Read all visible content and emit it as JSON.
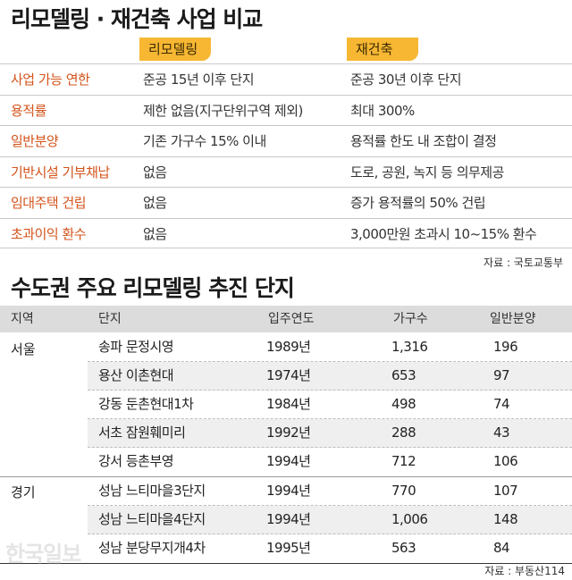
{
  "comparison": {
    "title": "리모델링 · 재건축 사업 비교",
    "col_remodel": "리모델링",
    "col_rebuild": "재건축",
    "rows": [
      {
        "label": "사업 가능 연한",
        "remodel": "준공 15년 이후 단지",
        "rebuild": "준공 30년 이후 단지"
      },
      {
        "label": "용적률",
        "remodel": "제한 없음(지구단위구역 제외)",
        "rebuild": "최대 300%"
      },
      {
        "label": "일반분양",
        "remodel": "기존 가구수 15% 이내",
        "rebuild": "용적률 한도 내 조합이 결정"
      },
      {
        "label": "기반시설 기부채납",
        "remodel": "없음",
        "rebuild": "도로, 공원, 녹지 등 의무제공"
      },
      {
        "label": "임대주택 건립",
        "remodel": "없음",
        "rebuild": "증가 용적률의 50% 건립"
      },
      {
        "label": "초과이익 환수",
        "remodel": "없음",
        "rebuild": "3,000만원 초과시 10~15% 환수"
      }
    ],
    "source": "자료 : 국토교통부"
  },
  "complexes": {
    "title": "수도권 주요 리모델링 추진 단지",
    "headers": {
      "region": "지역",
      "name": "단지",
      "year": "입주연도",
      "units": "가구수",
      "general": "일반분양"
    },
    "groups": [
      {
        "region": "서울",
        "rows": [
          {
            "name": "송파 문정시영",
            "year": "1989년",
            "units": "1,316",
            "general": "196"
          },
          {
            "name": "용산 이촌현대",
            "year": "1974년",
            "units": "653",
            "general": "97"
          },
          {
            "name": "강동 둔촌현대1차",
            "year": "1984년",
            "units": "498",
            "general": "74"
          },
          {
            "name": "서초 잠원훼미리",
            "year": "1992년",
            "units": "288",
            "general": "43"
          },
          {
            "name": "강서 등촌부영",
            "year": "1994년",
            "units": "712",
            "general": "106"
          }
        ]
      },
      {
        "region": "경기",
        "rows": [
          {
            "name": "성남 느티마을3단지",
            "year": "1994년",
            "units": "770",
            "general": "107"
          },
          {
            "name": "성남 느티마을4단지",
            "year": "1994년",
            "units": "1,006",
            "general": "148"
          },
          {
            "name": "성남 분당무지개4차",
            "year": "1995년",
            "units": "563",
            "general": "84"
          }
        ]
      }
    ],
    "source": "자료 : 부동산114"
  },
  "watermark": "한국일보"
}
